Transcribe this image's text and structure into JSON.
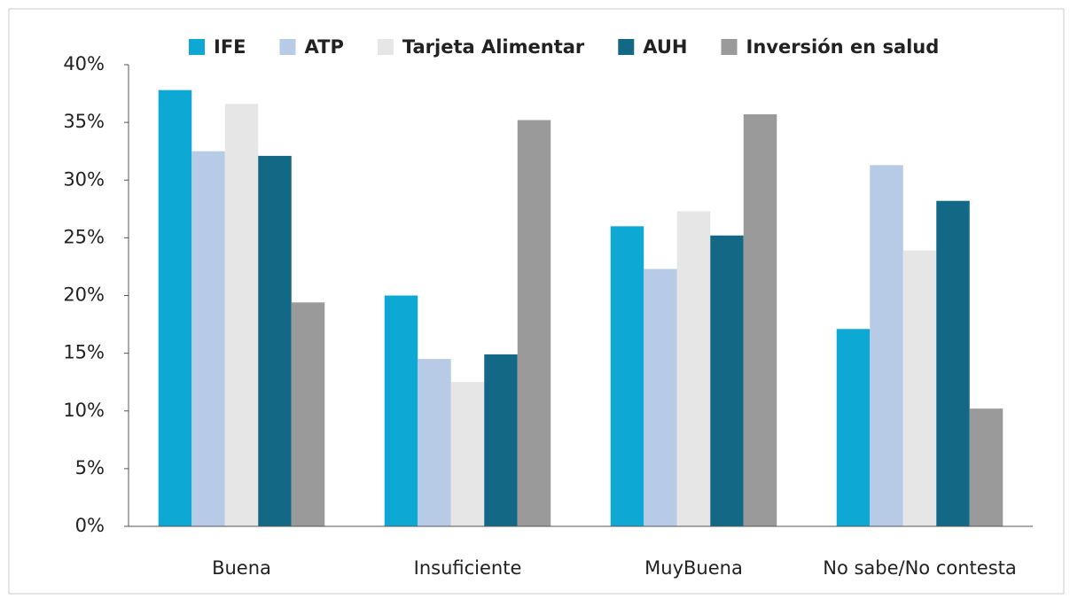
{
  "chart_data": {
    "type": "bar",
    "categories": [
      "Buena",
      "Insuficiente",
      "MuyBuena",
      "No sabe/No contesta"
    ],
    "series": [
      {
        "name": "IFE",
        "color": "#0ea8d4",
        "values": [
          37.8,
          20,
          26,
          17.1
        ]
      },
      {
        "name": "ATP",
        "color": "#b7cbe6",
        "values": [
          32.5,
          14.5,
          22.3,
          31.3
        ]
      },
      {
        "name": "Tarjeta Alimentar",
        "color": "#e6e6e6",
        "values": [
          36.6,
          12.5,
          27.3,
          23.9
        ]
      },
      {
        "name": "AUH",
        "color": "#136886",
        "values": [
          32.1,
          14.9,
          25.2,
          28.2
        ]
      },
      {
        "name": "Inversión en salud",
        "color": "#9a9a9a",
        "values": [
          19.4,
          35.2,
          35.7,
          10.2
        ]
      }
    ],
    "ylim": [
      0,
      40
    ],
    "yticks": [
      {
        "value": 0,
        "label": "0%"
      },
      {
        "value": 5,
        "label": "5%"
      },
      {
        "value": 10,
        "label": "10%"
      },
      {
        "value": 15,
        "label": "15%"
      },
      {
        "value": 20,
        "label": "20%"
      },
      {
        "value": 25,
        "label": "25%"
      },
      {
        "value": 30,
        "label": "30%"
      },
      {
        "value": 35,
        "label": "35%"
      },
      {
        "value": 40,
        "label": "40%"
      }
    ],
    "legend": "top"
  }
}
